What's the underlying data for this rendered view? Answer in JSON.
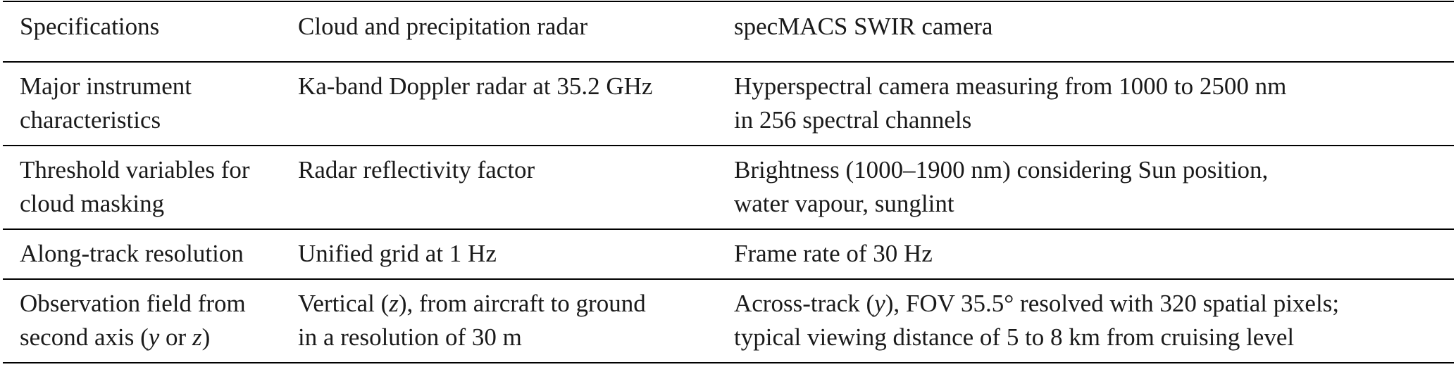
{
  "table": {
    "headers": [
      "Specifications",
      "Cloud and precipitation radar",
      "specMACS SWIR camera"
    ],
    "rows": [
      {
        "spec": [
          "Major instrument",
          "characteristics"
        ],
        "radar": [
          "Ka-band Doppler radar at 35.2 GHz"
        ],
        "camera": [
          "Hyperspectral camera measuring from 1000 to 2500 nm",
          "in 256 spectral channels"
        ]
      },
      {
        "spec": [
          "Threshold variables for",
          "cloud masking"
        ],
        "radar": [
          "Radar reflectivity factor"
        ],
        "camera": [
          "Brightness (1000–1900 nm) considering Sun position,",
          "water vapour, sunglint"
        ]
      },
      {
        "spec": [
          "Along-track resolution"
        ],
        "radar": [
          "Unified grid at 1 Hz"
        ],
        "camera": [
          "Frame rate of 30 Hz"
        ]
      },
      {
        "spec": [
          "Observation field from",
          "second axis (y or z)"
        ],
        "radar": [
          "Vertical (z), from aircraft to ground",
          "in a resolution of 30 m"
        ],
        "camera": [
          "Across-track (y), FOV 35.5° resolved with 320 spatial pixels;",
          "typical viewing distance of 5 to 8 km from cruising level"
        ]
      }
    ]
  }
}
